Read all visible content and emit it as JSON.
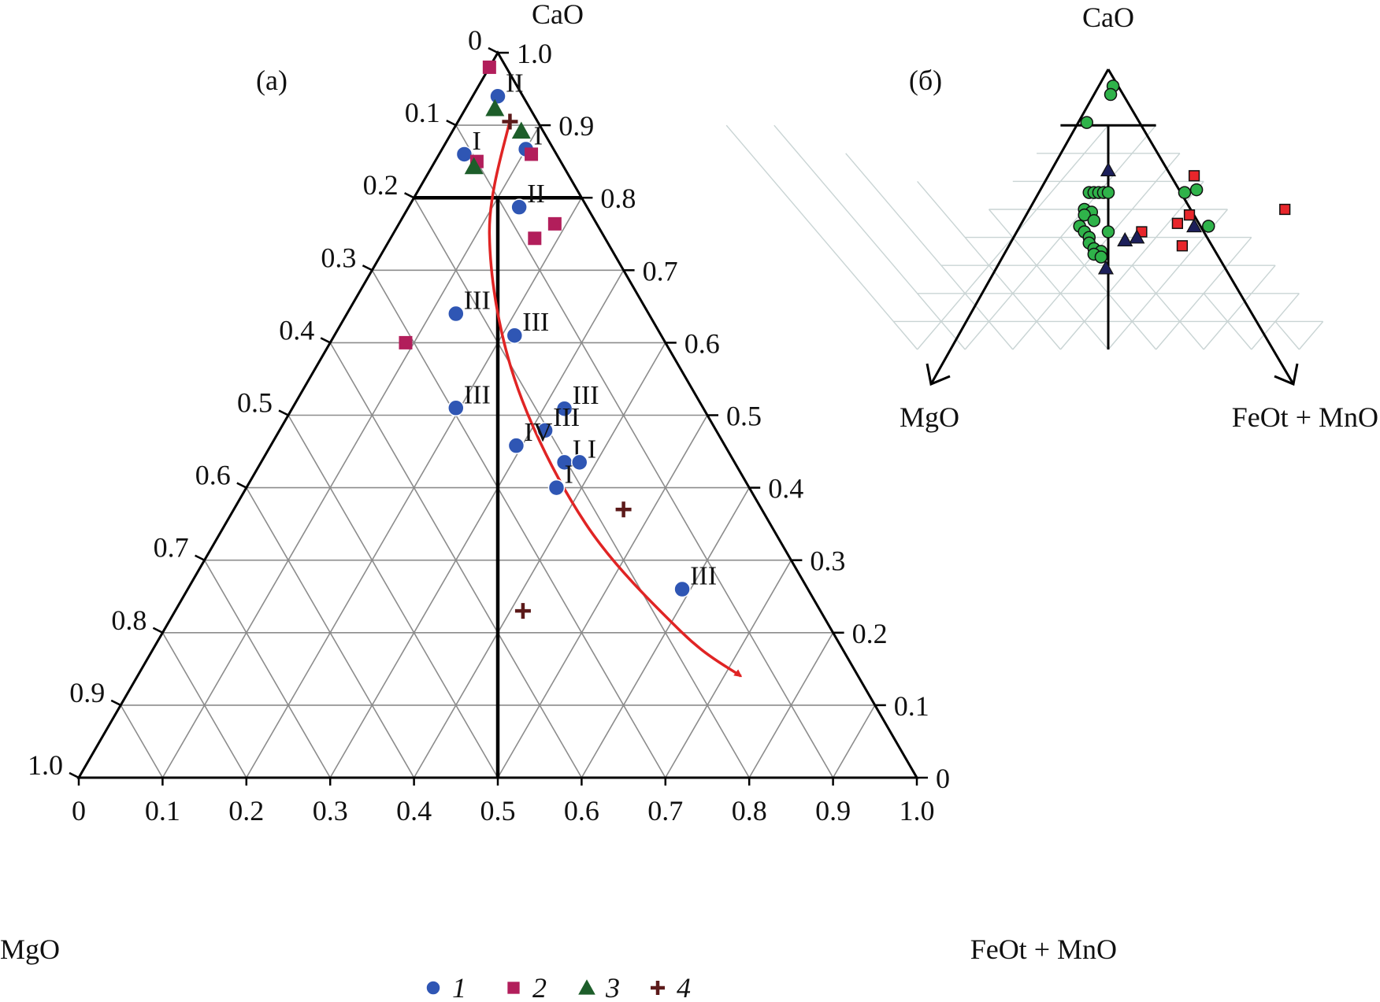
{
  "panel_a": {
    "label": "(a)",
    "apex_top": "CaO",
    "apex_left": "MgO",
    "apex_right": "FeOt + MnO"
  },
  "panel_b": {
    "label": "(б)",
    "apex_top": "CaO",
    "apex_left": "MgO",
    "apex_right": "FeOt + MnO"
  },
  "legend": [
    {
      "marker": "circle",
      "label": "1",
      "color": "#2f56b4"
    },
    {
      "marker": "square",
      "label": "2",
      "color": "#b21e5b"
    },
    {
      "marker": "triangle",
      "label": "3",
      "color": "#1d5e2a"
    },
    {
      "marker": "cross",
      "label": "4",
      "color": "#5c1a1a"
    }
  ],
  "chart_data": [
    {
      "type": "scatter",
      "subtype": "ternary",
      "panel": "(a)",
      "components": [
        "MgO",
        "FeOt + MnO",
        "CaO"
      ],
      "bottom_ticks": [
        "0",
        "0.1",
        "0.2",
        "0.3",
        "0.4",
        "0.5",
        "0.6",
        "0.7",
        "0.8",
        "0.9",
        "1.0"
      ],
      "left_ticks": [
        "0",
        "0.1",
        "0.2",
        "0.3",
        "0.4",
        "0.5",
        "0.6",
        "0.7",
        "0.8",
        "0.9",
        "1.0"
      ],
      "right_ticks": [
        "1.0",
        "0.9",
        "0.8",
        "0.7",
        "0.6",
        "0.5",
        "0.4",
        "0.3",
        "0.2",
        "0.1",
        "0"
      ],
      "grid": true,
      "boundaries": [
        {
          "kind": "CaO isoline",
          "value": 0.8
        },
        {
          "kind": "MgO = FeOt + MnO line",
          "from_cao": 0.8,
          "to_cao": 0.0
        }
      ],
      "colors": {
        "1": "#2f56b4",
        "2": "#b21e5b",
        "3": "#1d5e2a",
        "4": "#5c1a1a",
        "trend": "#e02424"
      },
      "series": [
        {
          "name": "1",
          "marker": "circle",
          "points": [
            {
              "cao": 0.94,
              "fe": 0.03,
              "label": "II"
            },
            {
              "cao": 0.86,
              "fe": 0.03,
              "label": "I"
            },
            {
              "cao": 0.867,
              "fe": 0.1,
              "label": "I"
            },
            {
              "cao": 0.787,
              "fe": 0.132,
              "label": "II"
            },
            {
              "cao": 0.64,
              "fe": 0.13,
              "label": "III"
            },
            {
              "cao": 0.61,
              "fe": 0.215,
              "label": "III"
            },
            {
              "cao": 0.51,
              "fe": 0.195,
              "label": "III"
            },
            {
              "cao": 0.509,
              "fe": 0.325,
              "label": "III"
            },
            {
              "cao": 0.479,
              "fe": 0.317,
              "label": "III"
            },
            {
              "cao": 0.458,
              "fe": 0.293,
              "label": "IV"
            },
            {
              "cao": 0.435,
              "fe": 0.362,
              "label": "I"
            },
            {
              "cao": 0.435,
              "fe": 0.38,
              "label": "I"
            },
            {
              "cao": 0.4,
              "fe": 0.37,
              "label": "I"
            },
            {
              "cao": 0.26,
              "fe": 0.59,
              "label": "III"
            }
          ]
        },
        {
          "name": "2",
          "marker": "square",
          "points": [
            {
              "cao": 0.98,
              "fe": 0.0
            },
            {
              "cao": 0.86,
              "fe": 0.11
            },
            {
              "cao": 0.85,
              "fe": 0.05
            },
            {
              "cao": 0.764,
              "fe": 0.186
            },
            {
              "cao": 0.744,
              "fe": 0.172
            },
            {
              "cao": 0.6,
              "fe": 0.09
            }
          ]
        },
        {
          "name": "3",
          "marker": "triangle",
          "points": [
            {
              "cao": 0.923,
              "fe": 0.035
            },
            {
              "cao": 0.892,
              "fe": 0.082
            },
            {
              "cao": 0.843,
              "fe": 0.05
            }
          ]
        },
        {
          "name": "4",
          "marker": "cross",
          "points": [
            {
              "cao": 0.905,
              "fe": 0.062
            },
            {
              "cao": 0.37,
              "fe": 0.465
            },
            {
              "cao": 0.23,
              "fe": 0.415
            }
          ]
        }
      ],
      "trend_arrow": {
        "direction": "from CaO apex region toward FeOt + MnO",
        "points": [
          {
            "cao": 0.91,
            "fe": 0.06
          },
          {
            "cao": 0.75,
            "fe": 0.115
          },
          {
            "cao": 0.55,
            "fe": 0.245
          },
          {
            "cao": 0.35,
            "fe": 0.43
          },
          {
            "cao": 0.2,
            "fe": 0.62
          },
          {
            "cao": 0.14,
            "fe": 0.72
          }
        ]
      }
    },
    {
      "type": "scatter",
      "subtype": "ternary",
      "panel": "(б)",
      "components": [
        "MgO",
        "FeOt + MnO",
        "CaO"
      ],
      "grid": true,
      "boundaries": [
        {
          "kind": "CaO isoline",
          "value": 0.8
        },
        {
          "kind": "MgO = FeOt + MnO line",
          "from_cao": 0.8,
          "to_cao": 0.0
        }
      ],
      "colors": {
        "circle": "#2fb34a",
        "square": "#e8262b",
        "triangle": "#1c1f5a"
      },
      "series": [
        {
          "marker": "circle",
          "points": [
            {
              "cao": 0.94,
              "fe": 0.04
            },
            {
              "cao": 0.91,
              "fe": 0.05
            },
            {
              "cao": 0.81,
              "fe": 0.05
            },
            {
              "cao": 0.56,
              "fe": 0.18
            },
            {
              "cao": 0.56,
              "fe": 0.19
            },
            {
              "cao": 0.56,
              "fe": 0.2
            },
            {
              "cao": 0.56,
              "fe": 0.21
            },
            {
              "cao": 0.56,
              "fe": 0.22
            },
            {
              "cao": 0.5,
              "fe": 0.2
            },
            {
              "cao": 0.49,
              "fe": 0.22
            },
            {
              "cao": 0.48,
              "fe": 0.21
            },
            {
              "cao": 0.46,
              "fe": 0.24
            },
            {
              "cao": 0.44,
              "fe": 0.22
            },
            {
              "cao": 0.42,
              "fe": 0.24
            },
            {
              "cao": 0.4,
              "fe": 0.26
            },
            {
              "cao": 0.38,
              "fe": 0.27
            },
            {
              "cao": 0.36,
              "fe": 0.29
            },
            {
              "cao": 0.35,
              "fe": 0.31
            },
            {
              "cao": 0.34,
              "fe": 0.3
            },
            {
              "cao": 0.33,
              "fe": 0.32
            },
            {
              "cao": 0.42,
              "fe": 0.29
            },
            {
              "cao": 0.57,
              "fe": 0.4
            },
            {
              "cao": 0.56,
              "fe": 0.38
            },
            {
              "cao": 0.44,
              "fe": 0.49
            }
          ]
        },
        {
          "marker": "square",
          "points": [
            {
              "cao": 0.62,
              "fe": 0.37
            },
            {
              "cao": 0.5,
              "fe": 0.62
            },
            {
              "cao": 0.48,
              "fe": 0.43
            },
            {
              "cao": 0.45,
              "fe": 0.42
            },
            {
              "cao": 0.42,
              "fe": 0.36
            },
            {
              "cao": 0.37,
              "fe": 0.47
            }
          ]
        },
        {
          "marker": "triangle",
          "points": [
            {
              "cao": 0.64,
              "fe": 0.18
            },
            {
              "cao": 0.44,
              "fe": 0.46
            },
            {
              "cao": 0.4,
              "fe": 0.36
            },
            {
              "cao": 0.39,
              "fe": 0.34
            },
            {
              "cao": 0.29,
              "fe": 0.35
            }
          ]
        }
      ]
    }
  ]
}
